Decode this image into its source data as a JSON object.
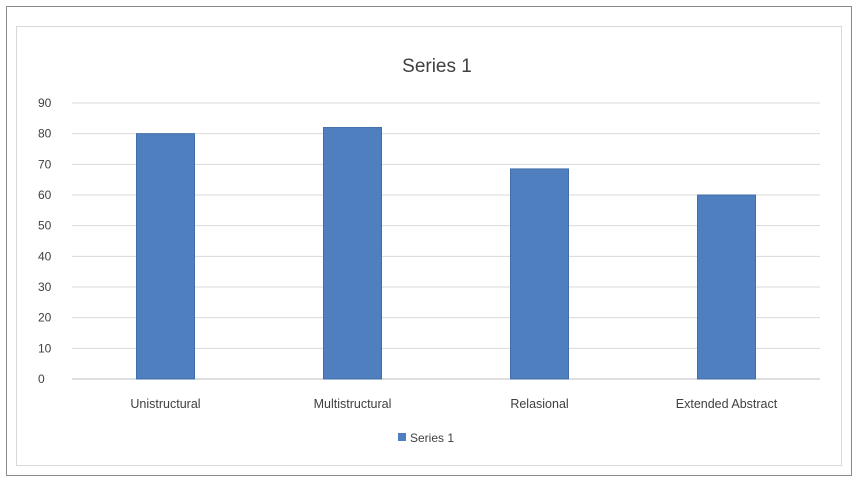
{
  "chart_data": {
    "type": "bar",
    "title": "Series 1",
    "categories": [
      "Unistructural",
      "Multistructural",
      "Relasional",
      "Extended Abstract"
    ],
    "series": [
      {
        "name": "Series 1",
        "values": [
          80,
          82,
          68.5,
          60
        ],
        "color": "#4f7fbf"
      }
    ],
    "ylim": [
      0,
      90
    ],
    "yticks": [
      0,
      10,
      20,
      30,
      40,
      50,
      60,
      70,
      80,
      90
    ],
    "grid": true,
    "legend": "bottom",
    "colors": {
      "bar": "#4f7fbf",
      "grid": "#d9d9d9",
      "text": "#404040"
    }
  }
}
